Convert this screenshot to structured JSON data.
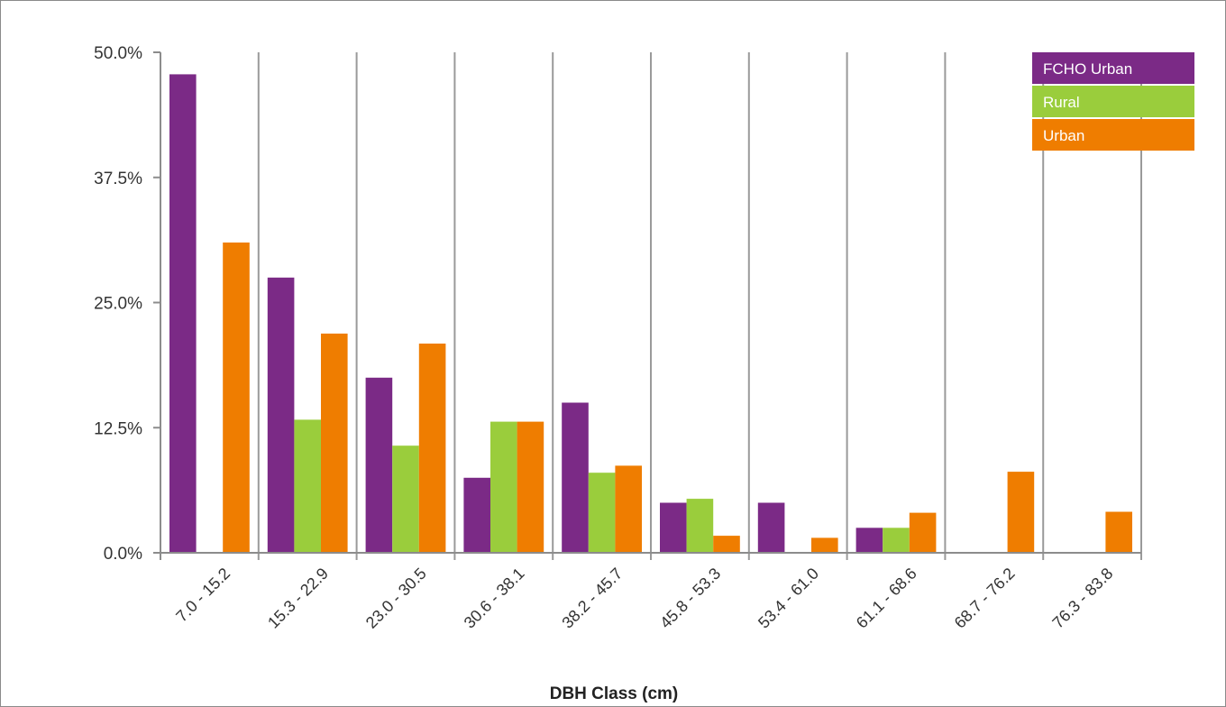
{
  "chart_data": {
    "type": "bar",
    "title": "",
    "xlabel": "DBH Class (cm)",
    "ylabel": "",
    "ylim": [
      0,
      50
    ],
    "yticks": [
      "0.0%",
      "12.5%",
      "25.0%",
      "37.5%",
      "50.0%"
    ],
    "categories": [
      "7.0 - 15.2",
      "15.3 - 22.9",
      "23.0 - 30.5",
      "30.6 - 38.1",
      "38.2 - 45.7",
      "45.8 - 53.3",
      "53.4 - 61.0",
      "61.1 - 68.6",
      "68.7 - 76.2",
      "76.3 - 83.8"
    ],
    "series": [
      {
        "name": "FCHO Urban",
        "color": "#7b2a86",
        "values": [
          47.8,
          27.5,
          17.5,
          7.5,
          15.0,
          5.0,
          5.0,
          2.5,
          0.0,
          0.0
        ]
      },
      {
        "name": "Rural",
        "color": "#9acd3c",
        "values": [
          0.0,
          13.3,
          10.7,
          13.1,
          8.0,
          5.4,
          0.0,
          2.5,
          0.0,
          0.0
        ]
      },
      {
        "name": "Urban",
        "color": "#ef7d00",
        "values": [
          31.0,
          21.9,
          20.9,
          13.1,
          8.7,
          1.7,
          1.5,
          4.0,
          8.1,
          4.1
        ]
      }
    ],
    "grid": {
      "vertical": true,
      "horizontal": false
    },
    "legend_position": "top-right"
  }
}
